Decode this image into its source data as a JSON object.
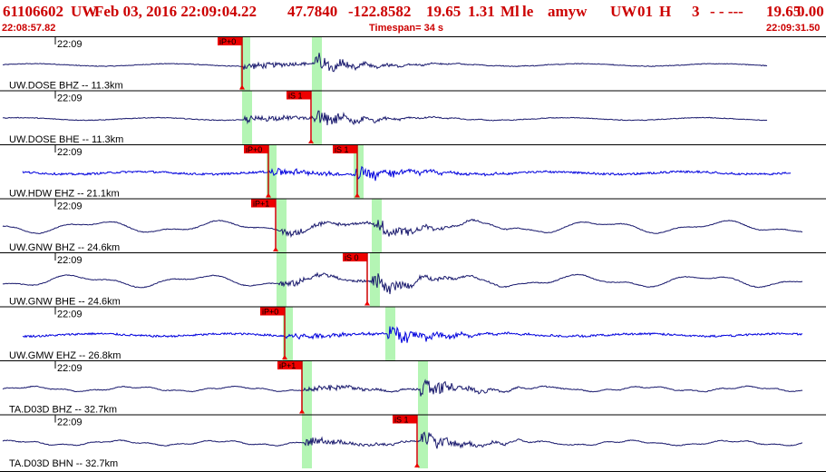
{
  "header": {
    "event_id": "61106602",
    "network": "UW",
    "datetime": "Feb 03, 2016 22:09:04.22",
    "lat": "47.7840",
    "lon": "-122.8582",
    "depth": "19.65",
    "magnitude": "1.31",
    "mag_type": "Ml",
    "flag": "le",
    "author": "amyw",
    "source": "UW",
    "version": "01",
    "event_type": "H",
    "quality": "3",
    "extra": "- - ---",
    "depth2": "19.65",
    "rms": "0.00",
    "start_time": "22:08:57.82",
    "timespan": "Timespan=  34 s",
    "end_time": "22:09:31.50"
  },
  "colors": {
    "accent": "#cc0000",
    "trace_dark": "#1a1a6e",
    "trace_blue": "#0000dd",
    "pick_window": "#b4f5b4"
  },
  "panels": [
    {
      "label": "UW.DOSE BHZ -- 11.3km",
      "time": "22:09",
      "color": "#1a1a6e",
      "amp": 1.0,
      "picks": [
        {
          "label": "iP+0",
          "x": 267
        }
      ],
      "windows": [
        267,
        346
      ]
    },
    {
      "label": "UW.DOSE BHE -- 11.3km",
      "time": "22:09",
      "color": "#1a1a6e",
      "amp": 1.0,
      "picks": [
        {
          "label": "iS 1",
          "x": 343
        }
      ],
      "windows": [
        269,
        346
      ]
    },
    {
      "label": "UW.HDW EHZ -- 21.1km",
      "time": "22:09",
      "color": "#0000dd",
      "amp": 1.0,
      "picks": [
        {
          "label": "iP+0",
          "x": 296
        },
        {
          "label": "iS 1",
          "x": 394
        }
      ],
      "windows": [
        296,
        392
      ]
    },
    {
      "label": "UW.GNW BHZ -- 24.6km",
      "time": "22:09",
      "color": "#1a1a6e",
      "amp": 1.0,
      "picks": [
        {
          "label": "iP+1",
          "x": 304
        }
      ],
      "windows": [
        307,
        412
      ]
    },
    {
      "label": "UW.GNW BHE -- 24.6km",
      "time": "22:09",
      "color": "#1a1a6e",
      "amp": 1.0,
      "picks": [
        {
          "label": "iS 0",
          "x": 405
        }
      ],
      "windows": [
        307,
        410
      ]
    },
    {
      "label": "UW.GMW EHZ -- 26.8km",
      "time": "22:09",
      "color": "#0000dd",
      "amp": 1.0,
      "picks": [
        {
          "label": "iP+0",
          "x": 314
        }
      ],
      "windows": [
        314,
        427
      ]
    },
    {
      "label": "TA.D03D BHZ -- 32.7km",
      "time": "22:09",
      "color": "#1a1a6e",
      "amp": 1.0,
      "picks": [
        {
          "label": "iP+1",
          "x": 333
        }
      ],
      "windows": [
        335,
        463
      ]
    },
    {
      "label": "TA.D03D BHN -- 32.7km",
      "time": "22:09",
      "color": "#1a1a6e",
      "amp": 1.0,
      "picks": [
        {
          "label": "iS 1",
          "x": 460
        }
      ],
      "windows": [
        335,
        463
      ]
    }
  ]
}
